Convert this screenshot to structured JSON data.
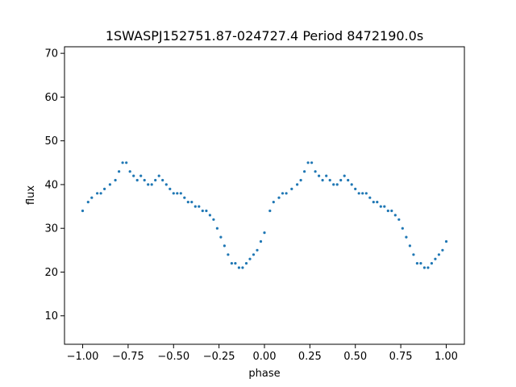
{
  "chart_data": {
    "type": "scatter",
    "title": "1SWASPJ152751.87-024727.4 Period 8472190.0s",
    "xlabel": "phase",
    "ylabel": "flux",
    "xlim": [
      -1.1,
      1.1
    ],
    "ylim": [
      3.5,
      71.5
    ],
    "xticks": [
      -1.0,
      -0.75,
      -0.5,
      -0.25,
      0.0,
      0.25,
      0.5,
      0.75,
      1.0
    ],
    "xtick_labels": [
      "−1.00",
      "−0.75",
      "−0.50",
      "−0.25",
      "0.00",
      "0.25",
      "0.50",
      "0.75",
      "1.00"
    ],
    "yticks": [
      10,
      20,
      30,
      40,
      50,
      60,
      70
    ],
    "ytick_labels": [
      "10",
      "20",
      "30",
      "40",
      "50",
      "60",
      "70"
    ],
    "grid": false,
    "marker_color": "#1f77b4",
    "x": [
      -1.0,
      -0.97,
      -0.95,
      -0.92,
      -0.9,
      -0.88,
      -0.85,
      -0.82,
      -0.8,
      -0.78,
      -0.76,
      -0.74,
      -0.72,
      -0.7,
      -0.68,
      -0.66,
      -0.64,
      -0.62,
      -0.6,
      -0.58,
      -0.56,
      -0.54,
      -0.52,
      -0.5,
      -0.48,
      -0.46,
      -0.44,
      -0.42,
      -0.4,
      -0.38,
      -0.36,
      -0.34,
      -0.32,
      -0.3,
      -0.28,
      -0.26,
      -0.24,
      -0.22,
      -0.2,
      -0.18,
      -0.16,
      -0.14,
      -0.12,
      -0.1,
      -0.08,
      -0.06,
      -0.04,
      -0.02,
      0.0,
      0.03,
      0.05,
      0.08,
      0.1,
      0.12,
      0.15,
      0.18,
      0.2,
      0.22,
      0.24,
      0.26,
      0.28,
      0.3,
      0.32,
      0.34,
      0.36,
      0.38,
      0.4,
      0.42,
      0.44,
      0.46,
      0.48,
      0.5,
      0.52,
      0.54,
      0.56,
      0.58,
      0.6,
      0.62,
      0.64,
      0.66,
      0.68,
      0.7,
      0.72,
      0.74,
      0.76,
      0.78,
      0.8,
      0.82,
      0.84,
      0.86,
      0.88,
      0.9,
      0.92,
      0.94,
      0.96,
      0.98,
      1.0
    ],
    "y": [
      34,
      36,
      37,
      38,
      38,
      39,
      40,
      41,
      43,
      45,
      45,
      43,
      42,
      41,
      42,
      41,
      40,
      40,
      41,
      42,
      41,
      40,
      39,
      38,
      38,
      38,
      37,
      36,
      36,
      35,
      35,
      34,
      34,
      33,
      32,
      30,
      28,
      26,
      24,
      22,
      22,
      21,
      21,
      22,
      23,
      24,
      25,
      27,
      29,
      34,
      36,
      37,
      38,
      38,
      39,
      40,
      41,
      43,
      45,
      45,
      43,
      42,
      41,
      42,
      41,
      40,
      40,
      41,
      42,
      41,
      40,
      39,
      38,
      38,
      38,
      37,
      36,
      36,
      35,
      35,
      34,
      34,
      33,
      32,
      30,
      28,
      26,
      24,
      22,
      22,
      21,
      21,
      22,
      23,
      24,
      25,
      27
    ]
  }
}
